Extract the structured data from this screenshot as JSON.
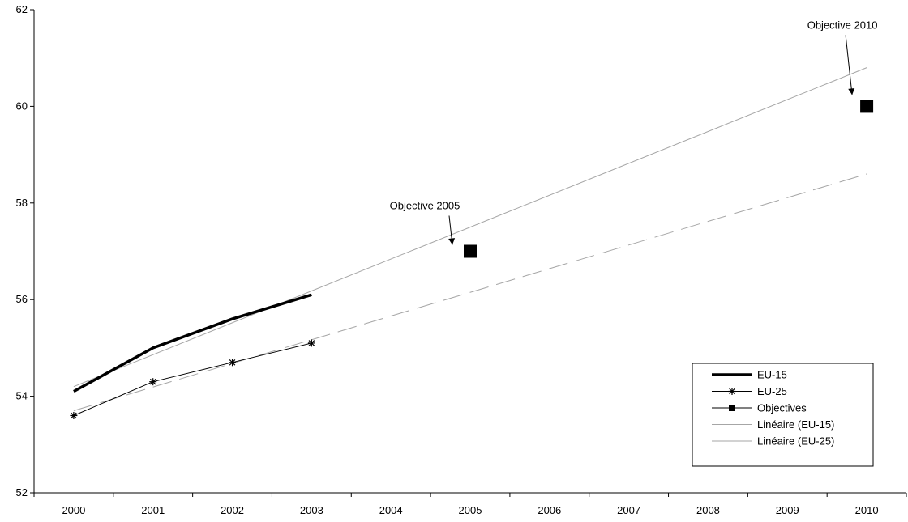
{
  "chart_data": {
    "type": "line",
    "x": [
      2000,
      2001,
      2002,
      2003,
      2004,
      2005,
      2006,
      2007,
      2008,
      2009,
      2010
    ],
    "ylim": [
      52,
      62
    ],
    "yticks": [
      52,
      54,
      56,
      58,
      60,
      62
    ],
    "grid": false,
    "legend_position": "bottom-right",
    "series": [
      {
        "name": "EU-15",
        "x": [
          2000,
          2001,
          2002,
          2003
        ],
        "values": [
          54.1,
          55.0,
          55.6,
          56.1
        ],
        "color": "#000000"
      },
      {
        "name": "EU-25",
        "x": [
          2000,
          2001,
          2002,
          2003
        ],
        "values": [
          53.6,
          54.3,
          54.7,
          55.1
        ],
        "color": "#000000",
        "marker": "asterisk"
      },
      {
        "name": "Objectives",
        "x": [
          2005,
          2010
        ],
        "values": [
          57.0,
          60.0
        ],
        "color": "#000000",
        "marker": "square"
      },
      {
        "name": "Linéaire (EU-15)",
        "x": [
          2000,
          2010
        ],
        "values": [
          54.2,
          60.8
        ],
        "color": "#a6a6a6"
      },
      {
        "name": "Linéaire (EU-25)",
        "x": [
          2000,
          2010
        ],
        "values": [
          53.7,
          58.6
        ],
        "color": "#a6a6a6",
        "dashed": true
      }
    ],
    "annotations": [
      {
        "text": "Objective 2005",
        "x": 2005,
        "y": 57.0
      },
      {
        "text": "Objective 2010",
        "x": 2010,
        "y": 60.0
      }
    ]
  }
}
